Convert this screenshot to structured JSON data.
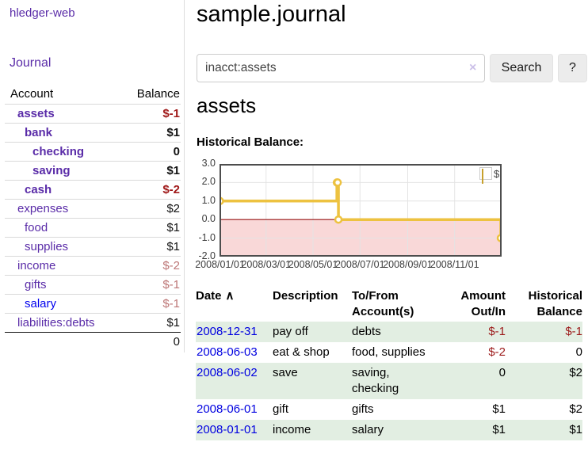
{
  "sidebar": {
    "app_title": "hledger-web",
    "journal_link": "Journal",
    "accounts_table": {
      "account_header": "Account",
      "balance_header": "Balance",
      "rows": [
        {
          "label": "assets",
          "level": 1,
          "bold": true,
          "balance": "$-1",
          "tone": "neg-strong"
        },
        {
          "label": "bank",
          "level": 2,
          "bold": true,
          "balance": "$1",
          "tone": "pos-strong"
        },
        {
          "label": "checking",
          "level": 3,
          "bold": true,
          "balance": "0",
          "tone": "pos-strong"
        },
        {
          "label": "saving",
          "level": 3,
          "bold": true,
          "balance": "$1",
          "tone": "pos-strong"
        },
        {
          "label": "cash",
          "level": 2,
          "bold": true,
          "balance": "$-2",
          "tone": "neg-strong"
        },
        {
          "label": "expenses",
          "level": 1,
          "bold": false,
          "balance": "$2",
          "tone": "pos"
        },
        {
          "label": "food",
          "level": 2,
          "bold": false,
          "balance": "$1",
          "tone": "pos"
        },
        {
          "label": "supplies",
          "level": 2,
          "bold": false,
          "balance": "$1",
          "tone": "pos"
        },
        {
          "label": "income",
          "level": 1,
          "bold": false,
          "balance": "$-2",
          "tone": "neg-muted"
        },
        {
          "label": "gifts",
          "level": 2,
          "bold": false,
          "balance": "$-1",
          "tone": "neg-muted"
        },
        {
          "label": "salary",
          "level": 2,
          "bold": false,
          "balance": "$-1",
          "tone": "neg-muted",
          "link_style": "unvisited"
        },
        {
          "label": "liabilities:debts",
          "level": 1,
          "bold": false,
          "balance": "$1",
          "tone": "pos"
        }
      ],
      "total_balance": "0"
    }
  },
  "header": {
    "title": "sample.journal"
  },
  "search": {
    "value": "inacct:assets",
    "clear_icon": "×",
    "button_label": "Search",
    "help_label": "?"
  },
  "main": {
    "account_title": "assets",
    "chart_label": "Historical Balance:"
  },
  "chart_data": {
    "type": "line",
    "step": true,
    "title": "Historical Balance",
    "series": [
      {
        "name": "$",
        "color": "#edc240",
        "points": [
          [
            "2008-01-01",
            1.0
          ],
          [
            "2008-06-01",
            2.0
          ],
          [
            "2008-06-02",
            2.0
          ],
          [
            "2008-06-03",
            0.0
          ],
          [
            "2008-12-31",
            -1.0
          ]
        ]
      }
    ],
    "xlim": [
      "2008-01-01",
      "2008-12-31"
    ],
    "ylim": [
      -2.0,
      3.0
    ],
    "yticks": [
      "3.0",
      "2.0",
      "1.0",
      "0.0",
      "-1.0",
      "-2.0"
    ],
    "xticks": [
      {
        "date": "2008-01-01",
        "label": "2008/01/01"
      },
      {
        "date": "2008-03-01",
        "label": "2008/03/01"
      },
      {
        "date": "2008-05-01",
        "label": "2008/05/01"
      },
      {
        "date": "2008-07-01",
        "label": "2008/07/01"
      },
      {
        "date": "2008-09-01",
        "label": "2008/09/01"
      },
      {
        "date": "2008-11-01",
        "label": "2008/11/01"
      }
    ],
    "grid": true,
    "negative_region": {
      "below": 0,
      "color": "#f9d8d8",
      "line_color": "#991414"
    },
    "legend": {
      "label": "$",
      "position": "top-right"
    }
  },
  "register_table": {
    "headers": [
      {
        "label": "Date",
        "sort": "∧",
        "align": "left"
      },
      {
        "label": "Description",
        "align": "left"
      },
      {
        "label": "To/From Account(s)",
        "align": "left"
      },
      {
        "label": "Amount Out/In",
        "align": "right"
      },
      {
        "label": "Historical Balance",
        "align": "right"
      }
    ],
    "rows": [
      {
        "date": "2008-12-31",
        "description": "pay off",
        "accounts": "debts",
        "amount": "$-1",
        "balance": "$-1"
      },
      {
        "date": "2008-06-03",
        "description": "eat & shop",
        "accounts": "food, supplies",
        "amount": "$-2",
        "balance": "0"
      },
      {
        "date": "2008-06-02",
        "description": "save",
        "accounts": "saving, checking",
        "amount": "0",
        "balance": "$2"
      },
      {
        "date": "2008-06-01",
        "description": "gift",
        "accounts": "gifts",
        "amount": "$1",
        "balance": "$2"
      },
      {
        "date": "2008-01-01",
        "description": "income",
        "accounts": "salary",
        "amount": "$1",
        "balance": "$1"
      }
    ]
  }
}
